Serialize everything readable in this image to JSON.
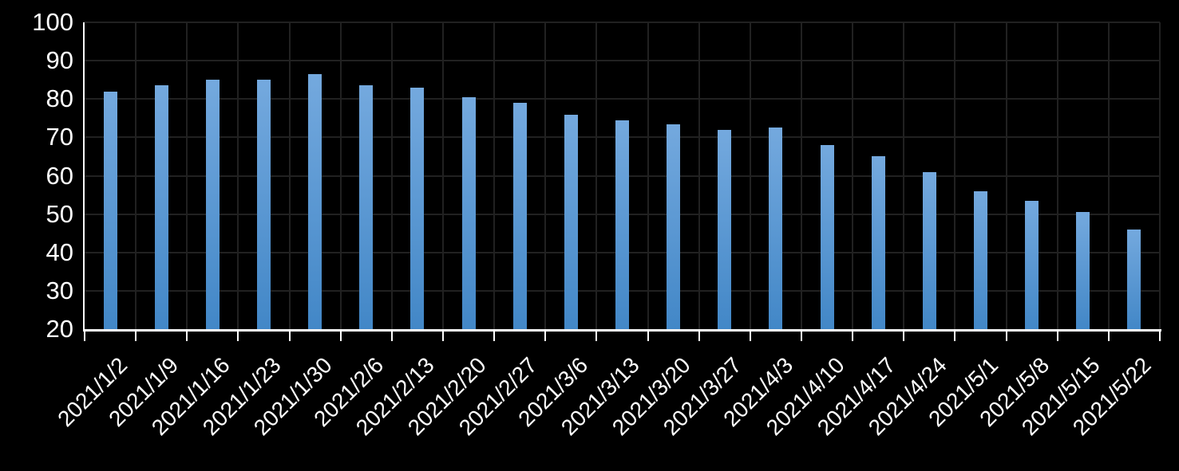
{
  "chart_data": {
    "type": "bar",
    "title": "",
    "xlabel": "",
    "ylabel": "",
    "categories": [
      "2021/1/2",
      "2021/1/9",
      "2021/1/16",
      "2021/1/23",
      "2021/1/30",
      "2021/2/6",
      "2021/2/13",
      "2021/2/20",
      "2021/2/27",
      "2021/3/6",
      "2021/3/13",
      "2021/3/20",
      "2021/3/27",
      "2021/4/3",
      "2021/4/10",
      "2021/4/17",
      "2021/4/24",
      "2021/5/1",
      "2021/5/8",
      "2021/5/15",
      "2021/5/22"
    ],
    "values": [
      82,
      83.5,
      85,
      85,
      86.5,
      83.5,
      83,
      80.5,
      79,
      76,
      74.5,
      73.5,
      72,
      72.5,
      68,
      65,
      61,
      56,
      53.5,
      50.5,
      46
    ],
    "ylim": [
      20,
      100
    ],
    "ytick_step": 10,
    "ytick_labels": [
      "100",
      "90",
      "80",
      "70",
      "60",
      "50",
      "40",
      "30",
      "20"
    ],
    "grid": true,
    "legend": false,
    "colors": {
      "background": "#000000",
      "bar_gradient_top": "#74a9de",
      "bar_gradient_bottom": "#4287c7",
      "gridline": "#212121",
      "axis_line": "#ffffff",
      "tick_label_text": "#ffffff"
    }
  }
}
